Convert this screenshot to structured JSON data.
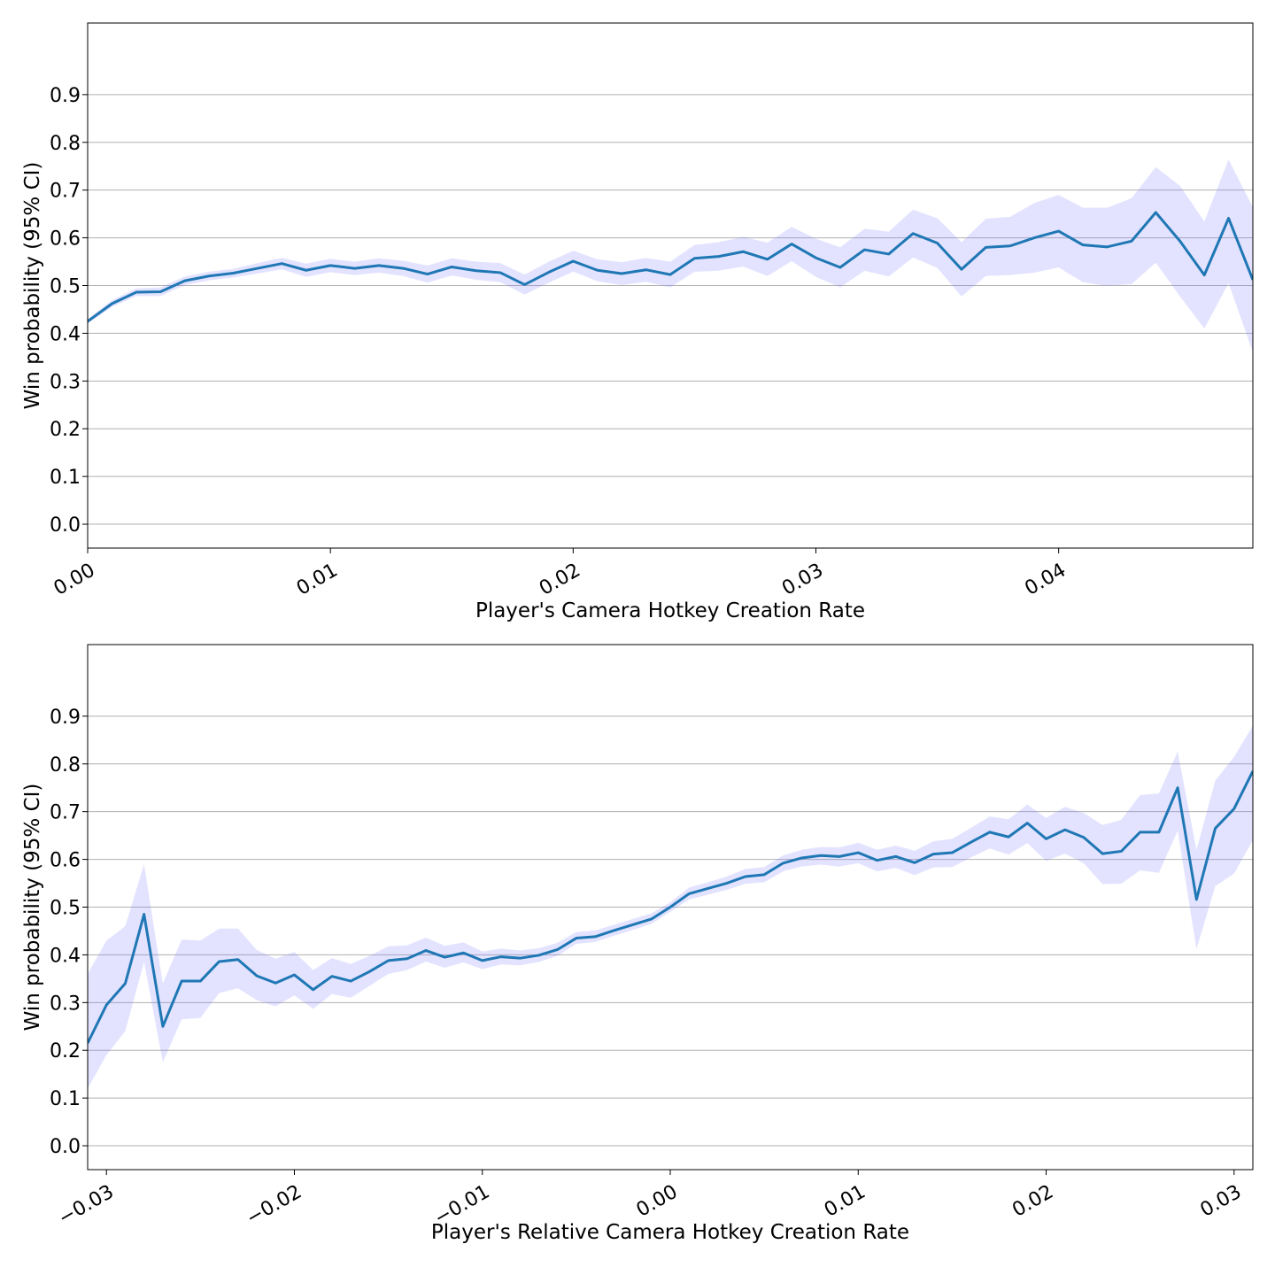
{
  "chart_data": [
    {
      "type": "line",
      "xlabel": "Player's Camera Hotkey Creation Rate",
      "ylabel": "Win probability (95% CI)",
      "xlim": [
        0.0,
        0.048
      ],
      "ylim": [
        -0.05,
        1.05
      ],
      "xticks": [
        0.0,
        0.01,
        0.02,
        0.03,
        0.04
      ],
      "xtick_labels": [
        "0.00",
        "0.01",
        "0.02",
        "0.03",
        "0.04"
      ],
      "yticks": [
        0.0,
        0.1,
        0.2,
        0.3,
        0.4,
        0.5,
        0.6,
        0.7,
        0.8,
        0.9
      ],
      "ytick_labels": [
        "0.0",
        "0.1",
        "0.2",
        "0.3",
        "0.4",
        "0.5",
        "0.6",
        "0.7",
        "0.8",
        "0.9"
      ],
      "grid": "horizontal",
      "line_color": "#1f77b4",
      "band_color": "#8080ff",
      "x": [
        0.0,
        0.001,
        0.002,
        0.003,
        0.004,
        0.005,
        0.006,
        0.007,
        0.008,
        0.009,
        0.01,
        0.011,
        0.012,
        0.013,
        0.014,
        0.015,
        0.016,
        0.017,
        0.018,
        0.019,
        0.02,
        0.021,
        0.022,
        0.023,
        0.024,
        0.025,
        0.026,
        0.027,
        0.028,
        0.029,
        0.03,
        0.031,
        0.032,
        0.033,
        0.034,
        0.035,
        0.036,
        0.037,
        0.038,
        0.039,
        0.04,
        0.041,
        0.042,
        0.043,
        0.044,
        0.045,
        0.046,
        0.047,
        0.048
      ],
      "y": [
        0.425,
        0.462,
        0.486,
        0.487,
        0.51,
        0.52,
        0.526,
        0.536,
        0.546,
        0.532,
        0.542,
        0.536,
        0.542,
        0.536,
        0.524,
        0.539,
        0.531,
        0.527,
        0.502,
        0.528,
        0.551,
        0.532,
        0.525,
        0.533,
        0.523,
        0.557,
        0.561,
        0.571,
        0.555,
        0.587,
        0.558,
        0.538,
        0.575,
        0.566,
        0.609,
        0.589,
        0.534,
        0.58,
        0.583,
        0.6,
        0.614,
        0.585,
        0.581,
        0.593,
        0.653,
        0.593,
        0.522,
        0.641,
        0.512
      ],
      "y_lower": [
        0.42,
        0.455,
        0.478,
        0.478,
        0.501,
        0.511,
        0.517,
        0.525,
        0.534,
        0.518,
        0.528,
        0.522,
        0.527,
        0.52,
        0.506,
        0.521,
        0.512,
        0.507,
        0.481,
        0.506,
        0.529,
        0.509,
        0.501,
        0.508,
        0.496,
        0.529,
        0.531,
        0.54,
        0.52,
        0.551,
        0.518,
        0.496,
        0.531,
        0.519,
        0.559,
        0.537,
        0.477,
        0.52,
        0.522,
        0.527,
        0.538,
        0.507,
        0.499,
        0.503,
        0.548,
        0.477,
        0.41,
        0.505,
        0.36
      ],
      "y_upper": [
        0.43,
        0.469,
        0.494,
        0.496,
        0.519,
        0.529,
        0.535,
        0.547,
        0.558,
        0.546,
        0.556,
        0.55,
        0.557,
        0.552,
        0.542,
        0.557,
        0.55,
        0.547,
        0.523,
        0.55,
        0.573,
        0.555,
        0.549,
        0.558,
        0.55,
        0.585,
        0.591,
        0.602,
        0.59,
        0.623,
        0.598,
        0.58,
        0.619,
        0.613,
        0.659,
        0.641,
        0.591,
        0.64,
        0.644,
        0.673,
        0.69,
        0.663,
        0.663,
        0.683,
        0.748,
        0.709,
        0.634,
        0.764,
        0.664
      ]
    },
    {
      "type": "line",
      "xlabel": "Player's Relative Camera Hotkey Creation Rate",
      "ylabel": "Win probability (95% CI)",
      "xlim": [
        -0.031,
        0.031
      ],
      "ylim": [
        -0.05,
        1.05
      ],
      "xticks": [
        -0.03,
        -0.02,
        -0.01,
        0.0,
        0.01,
        0.02,
        0.03
      ],
      "xtick_labels": [
        "−0.03",
        "−0.02",
        "−0.01",
        "0.00",
        "0.01",
        "0.02",
        "0.03"
      ],
      "yticks": [
        0.0,
        0.1,
        0.2,
        0.3,
        0.4,
        0.5,
        0.6,
        0.7,
        0.8,
        0.9
      ],
      "ytick_labels": [
        "0.0",
        "0.1",
        "0.2",
        "0.3",
        "0.4",
        "0.5",
        "0.6",
        "0.7",
        "0.8",
        "0.9"
      ],
      "grid": "horizontal",
      "line_color": "#1f77b4",
      "band_color": "#8080ff",
      "x": [
        -0.031,
        -0.03,
        -0.029,
        -0.028,
        -0.027,
        -0.026,
        -0.025,
        -0.024,
        -0.023,
        -0.022,
        -0.021,
        -0.02,
        -0.019,
        -0.018,
        -0.017,
        -0.016,
        -0.015,
        -0.014,
        -0.013,
        -0.012,
        -0.011,
        -0.01,
        -0.009,
        -0.008,
        -0.007,
        -0.006,
        -0.005,
        -0.004,
        -0.003,
        -0.002,
        -0.001,
        0.0,
        0.001,
        0.002,
        0.003,
        0.004,
        0.005,
        0.006,
        0.007,
        0.008,
        0.009,
        0.01,
        0.011,
        0.012,
        0.013,
        0.014,
        0.015,
        0.016,
        0.017,
        0.018,
        0.019,
        0.02,
        0.021,
        0.022,
        0.023,
        0.024,
        0.025,
        0.026,
        0.027,
        0.028,
        0.029,
        0.03,
        0.031
      ],
      "y": [
        0.215,
        0.295,
        0.34,
        0.485,
        0.25,
        0.345,
        0.345,
        0.386,
        0.39,
        0.356,
        0.341,
        0.358,
        0.327,
        0.355,
        0.345,
        0.365,
        0.388,
        0.392,
        0.409,
        0.395,
        0.404,
        0.388,
        0.396,
        0.393,
        0.399,
        0.411,
        0.435,
        0.438,
        0.451,
        0.463,
        0.475,
        0.5,
        0.528,
        0.539,
        0.55,
        0.564,
        0.568,
        0.592,
        0.603,
        0.608,
        0.606,
        0.614,
        0.598,
        0.606,
        0.593,
        0.611,
        0.614,
        0.636,
        0.657,
        0.647,
        0.676,
        0.643,
        0.662,
        0.646,
        0.612,
        0.617,
        0.657,
        0.657,
        0.75,
        0.516,
        0.665,
        0.706,
        0.785
      ],
      "y_lower": [
        0.12,
        0.19,
        0.24,
        0.385,
        0.175,
        0.265,
        0.268,
        0.32,
        0.33,
        0.305,
        0.292,
        0.315,
        0.287,
        0.318,
        0.31,
        0.335,
        0.36,
        0.368,
        0.386,
        0.373,
        0.384,
        0.37,
        0.38,
        0.378,
        0.385,
        0.398,
        0.423,
        0.427,
        0.44,
        0.452,
        0.465,
        0.49,
        0.516,
        0.526,
        0.536,
        0.549,
        0.552,
        0.575,
        0.585,
        0.589,
        0.585,
        0.592,
        0.575,
        0.582,
        0.567,
        0.583,
        0.584,
        0.604,
        0.623,
        0.61,
        0.634,
        0.597,
        0.612,
        0.592,
        0.548,
        0.549,
        0.577,
        0.572,
        0.66,
        0.412,
        0.544,
        0.57,
        0.64
      ],
      "y_upper": [
        0.36,
        0.43,
        0.46,
        0.59,
        0.34,
        0.432,
        0.43,
        0.455,
        0.455,
        0.41,
        0.392,
        0.406,
        0.368,
        0.393,
        0.381,
        0.398,
        0.418,
        0.42,
        0.436,
        0.419,
        0.426,
        0.407,
        0.413,
        0.409,
        0.414,
        0.425,
        0.448,
        0.451,
        0.463,
        0.475,
        0.487,
        0.51,
        0.541,
        0.552,
        0.564,
        0.58,
        0.584,
        0.608,
        0.62,
        0.626,
        0.625,
        0.635,
        0.62,
        0.629,
        0.618,
        0.638,
        0.643,
        0.666,
        0.69,
        0.684,
        0.715,
        0.687,
        0.71,
        0.697,
        0.672,
        0.683,
        0.735,
        0.738,
        0.826,
        0.62,
        0.765,
        0.815,
        0.88
      ]
    }
  ]
}
